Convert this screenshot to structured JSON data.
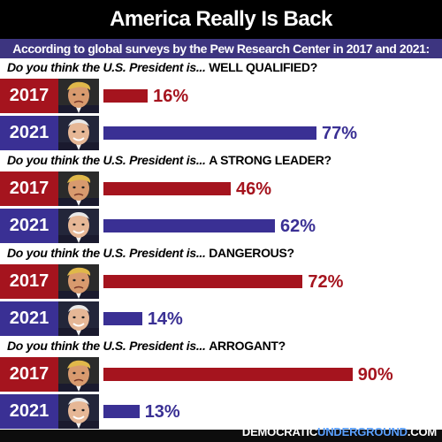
{
  "title": "America Really Is Back",
  "subtitle": "According to global surveys by the Pew Research Center in 2017 and 2021:",
  "footer": {
    "pre": "DEMOCRATIC",
    "highlight": "UNDERGROUND",
    "post": ".COM"
  },
  "colors": {
    "year_2017": "#a5141e",
    "year_2021": "#3a3094",
    "pct_2017": "#a5141e",
    "pct_2021": "#3a3094"
  },
  "chart_data": {
    "type": "bar",
    "title": "America Really Is Back",
    "subtitle": "According to global surveys by the Pew Research Center in 2017 and 2021:",
    "question_prefix": "Do you think the U.S. President is...",
    "ylim": [
      0,
      100
    ],
    "groups": [
      {
        "question": "WELL QUALIFIED?",
        "bars": [
          {
            "year": "2017",
            "value": 16,
            "label": "16%"
          },
          {
            "year": "2021",
            "value": 77,
            "label": "77%"
          }
        ]
      },
      {
        "question": "A STRONG LEADER?",
        "bars": [
          {
            "year": "2017",
            "value": 46,
            "label": "46%"
          },
          {
            "year": "2021",
            "value": 62,
            "label": "62%"
          }
        ]
      },
      {
        "question": "DANGEROUS?",
        "bars": [
          {
            "year": "2017",
            "value": 72,
            "label": "72%"
          },
          {
            "year": "2021",
            "value": 14,
            "label": "14%"
          }
        ]
      },
      {
        "question": "ARROGANT?",
        "bars": [
          {
            "year": "2017",
            "value": 90,
            "label": "90%"
          },
          {
            "year": "2021",
            "value": 13,
            "label": "13%"
          }
        ]
      }
    ]
  }
}
